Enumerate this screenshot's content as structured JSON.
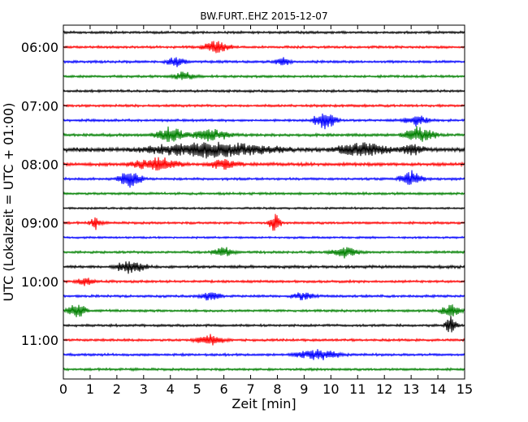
{
  "chart_data": {
    "type": "line",
    "title": "BW.FURT..EHZ 2015-12-07",
    "xlabel": "Zeit  [min]",
    "ylabel": "UTC (Lokalzeit = UTC + 01:00)",
    "xlim": [
      0,
      15
    ],
    "x_ticks": [
      "0",
      "1",
      "2",
      "3",
      "4",
      "5",
      "6",
      "7",
      "8",
      "9",
      "10",
      "11",
      "12",
      "13",
      "14",
      "15"
    ],
    "y_ticks": [
      "06:00",
      "07:00",
      "08:00",
      "09:00",
      "10:00",
      "11:00"
    ],
    "grid": false,
    "series_colors": [
      "#000000",
      "#ff0000",
      "#0000ff",
      "#008000"
    ],
    "traces": [
      {
        "start": "05:45",
        "color": "#000000",
        "amplitude": 0.3
      },
      {
        "start": "06:00",
        "color": "#ff0000",
        "amplitude": 0.3
      },
      {
        "start": "06:15",
        "color": "#0000ff",
        "amplitude": 0.3
      },
      {
        "start": "06:30",
        "color": "#008000",
        "amplitude": 0.3
      },
      {
        "start": "06:45",
        "color": "#000000",
        "amplitude": 0.3
      },
      {
        "start": "07:00",
        "color": "#ff0000",
        "amplitude": 0.3
      },
      {
        "start": "07:15",
        "color": "#0000ff",
        "amplitude": 0.3
      },
      {
        "start": "07:30",
        "color": "#008000",
        "amplitude": 0.35
      },
      {
        "start": "07:45",
        "color": "#000000",
        "amplitude": 0.55
      },
      {
        "start": "08:00",
        "color": "#ff0000",
        "amplitude": 0.4
      },
      {
        "start": "08:15",
        "color": "#0000ff",
        "amplitude": 0.3
      },
      {
        "start": "08:30",
        "color": "#008000",
        "amplitude": 0.3
      },
      {
        "start": "08:45",
        "color": "#000000",
        "amplitude": 0.25
      },
      {
        "start": "09:00",
        "color": "#ff0000",
        "amplitude": 0.3
      },
      {
        "start": "09:15",
        "color": "#0000ff",
        "amplitude": 0.25
      },
      {
        "start": "09:30",
        "color": "#008000",
        "amplitude": 0.3
      },
      {
        "start": "09:45",
        "color": "#000000",
        "amplitude": 0.35
      },
      {
        "start": "10:00",
        "color": "#ff0000",
        "amplitude": 0.3
      },
      {
        "start": "10:15",
        "color": "#0000ff",
        "amplitude": 0.3
      },
      {
        "start": "10:30",
        "color": "#008000",
        "amplitude": 0.3
      },
      {
        "start": "10:45",
        "color": "#000000",
        "amplitude": 0.3
      },
      {
        "start": "11:00",
        "color": "#ff0000",
        "amplitude": 0.3
      },
      {
        "start": "11:15",
        "color": "#0000ff",
        "amplitude": 0.3
      },
      {
        "start": "11:30",
        "color": "#008000",
        "amplitude": 0.3
      }
    ],
    "events": [
      {
        "start": "06:00",
        "minute": 5.7,
        "strength": 1.6,
        "width": 0.7
      },
      {
        "start": "06:15",
        "minute": 4.2,
        "strength": 1.2,
        "width": 0.5
      },
      {
        "start": "06:15",
        "minute": 8.2,
        "strength": 1.0,
        "width": 0.4
      },
      {
        "start": "06:30",
        "minute": 4.5,
        "strength": 1.0,
        "width": 0.6
      },
      {
        "start": "07:15",
        "minute": 9.8,
        "strength": 2.6,
        "width": 0.6
      },
      {
        "start": "07:15",
        "minute": 13.2,
        "strength": 1.4,
        "width": 0.6
      },
      {
        "start": "07:30",
        "minute": 4.0,
        "strength": 1.8,
        "width": 0.8
      },
      {
        "start": "07:30",
        "minute": 13.3,
        "strength": 2.0,
        "width": 0.8
      },
      {
        "start": "07:30",
        "minute": 5.5,
        "strength": 1.4,
        "width": 1.0
      },
      {
        "start": "07:45",
        "minute": 5.5,
        "strength": 1.8,
        "width": 3.2
      },
      {
        "start": "07:45",
        "minute": 11.2,
        "strength": 1.6,
        "width": 1.4
      },
      {
        "start": "07:45",
        "minute": 13.0,
        "strength": 1.2,
        "width": 0.6
      },
      {
        "start": "08:00",
        "minute": 3.5,
        "strength": 1.8,
        "width": 1.2
      },
      {
        "start": "08:00",
        "minute": 6.0,
        "strength": 1.4,
        "width": 0.8
      },
      {
        "start": "08:15",
        "minute": 2.5,
        "strength": 2.2,
        "width": 0.6
      },
      {
        "start": "08:15",
        "minute": 13.0,
        "strength": 2.0,
        "width": 0.6
      },
      {
        "start": "09:00",
        "minute": 1.2,
        "strength": 1.4,
        "width": 0.3
      },
      {
        "start": "09:00",
        "minute": 7.9,
        "strength": 2.4,
        "width": 0.3
      },
      {
        "start": "09:30",
        "minute": 6.0,
        "strength": 1.2,
        "width": 0.6
      },
      {
        "start": "09:30",
        "minute": 10.5,
        "strength": 1.2,
        "width": 0.8
      },
      {
        "start": "09:45",
        "minute": 2.5,
        "strength": 1.6,
        "width": 0.8
      },
      {
        "start": "10:00",
        "minute": 0.8,
        "strength": 1.0,
        "width": 0.5
      },
      {
        "start": "10:15",
        "minute": 5.5,
        "strength": 1.0,
        "width": 0.6
      },
      {
        "start": "10:15",
        "minute": 9.0,
        "strength": 1.0,
        "width": 0.6
      },
      {
        "start": "10:30",
        "minute": 0.5,
        "strength": 2.0,
        "width": 0.5
      },
      {
        "start": "10:30",
        "minute": 14.5,
        "strength": 1.8,
        "width": 0.5
      },
      {
        "start": "10:45",
        "minute": 14.5,
        "strength": 2.4,
        "width": 0.3
      },
      {
        "start": "11:00",
        "minute": 5.5,
        "strength": 1.2,
        "width": 0.8
      },
      {
        "start": "11:15",
        "minute": 9.5,
        "strength": 1.2,
        "width": 1.2
      }
    ]
  }
}
